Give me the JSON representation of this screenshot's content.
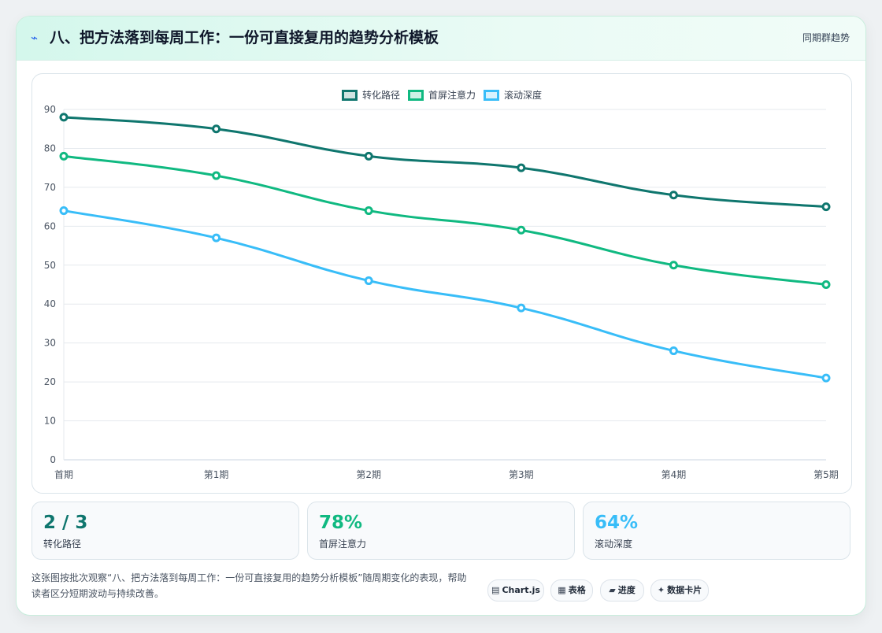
{
  "header": {
    "icon": "bolt-icon",
    "title": "八、把方法落到每周工作：一份可直接复用的趋势分析模板",
    "tag": "同期群趋势"
  },
  "chart_data": {
    "type": "line",
    "categories": [
      "首期",
      "第1期",
      "第2期",
      "第3期",
      "第4期",
      "第5期"
    ],
    "series": [
      {
        "name": "转化路径",
        "color": "#0f766e",
        "values": [
          88,
          85,
          78,
          75,
          68,
          65
        ]
      },
      {
        "name": "首屏注意力",
        "color": "#10b981",
        "values": [
          78,
          73,
          64,
          59,
          50,
          45
        ]
      },
      {
        "name": "滚动深度",
        "color": "#38bdf8",
        "values": [
          64,
          57,
          46,
          39,
          28,
          21
        ]
      }
    ],
    "yticks": [
      "0",
      "10",
      "20",
      "30",
      "40",
      "50",
      "60",
      "70",
      "80",
      "90"
    ],
    "ylim": [
      0,
      90
    ],
    "grid": true,
    "legend": "top-center",
    "smooth": true
  },
  "stats": [
    {
      "value": "2 / 3",
      "label": "转化路径",
      "color": "#0f766e"
    },
    {
      "value": "78%",
      "label": "首屏注意力",
      "color": "#10b981"
    },
    {
      "value": "64%",
      "label": "滚动深度",
      "color": "#38bdf8"
    }
  ],
  "footer": {
    "description": "这张图按批次观察“八、把方法落到每周工作：一份可直接复用的趋势分析模板”随周期变化的表现，帮助读者区分短期波动与持续改善。",
    "chips": [
      {
        "icon": "chart-icon",
        "glyph": "▤",
        "label": "Chart.js"
      },
      {
        "icon": "table-icon",
        "glyph": "▦",
        "label": "表格"
      },
      {
        "icon": "progress-icon",
        "glyph": "▰",
        "label": "进度"
      },
      {
        "icon": "sparkle-icon",
        "glyph": "✦",
        "label": "数据卡片"
      }
    ]
  }
}
